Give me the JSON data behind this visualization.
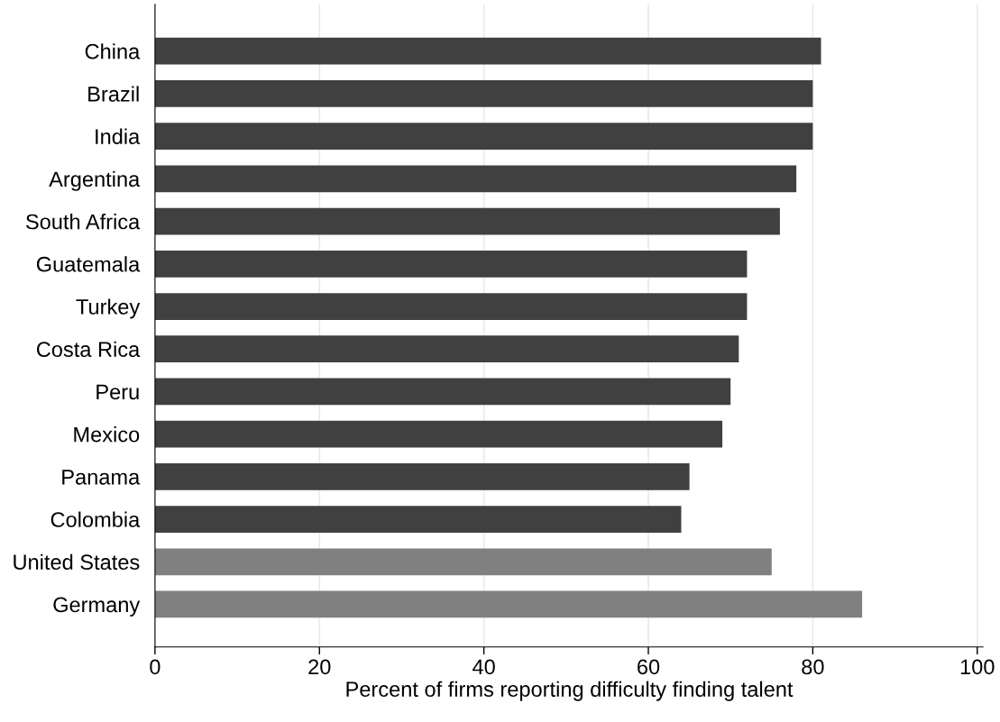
{
  "chart_data": {
    "type": "bar",
    "orientation": "horizontal",
    "xlabel": "Percent of firms reporting difficulty finding talent",
    "categories": [
      "China",
      "Brazil",
      "India",
      "Argentina",
      "South Africa",
      "Guatemala",
      "Turkey",
      "Costa Rica",
      "Peru",
      "Mexico",
      "Panama",
      "Colombia",
      "United States",
      "Germany"
    ],
    "values": [
      81,
      80,
      80,
      78,
      76,
      72,
      72,
      71,
      70,
      69,
      65,
      64,
      75,
      86
    ],
    "colors": [
      "#404040",
      "#404040",
      "#404040",
      "#404040",
      "#404040",
      "#404040",
      "#404040",
      "#404040",
      "#404040",
      "#404040",
      "#404040",
      "#404040",
      "#808080",
      "#808080"
    ],
    "xlim": [
      0,
      100.7
    ],
    "xticks": [
      0,
      20,
      40,
      60,
      80,
      100
    ],
    "grid": "x"
  }
}
